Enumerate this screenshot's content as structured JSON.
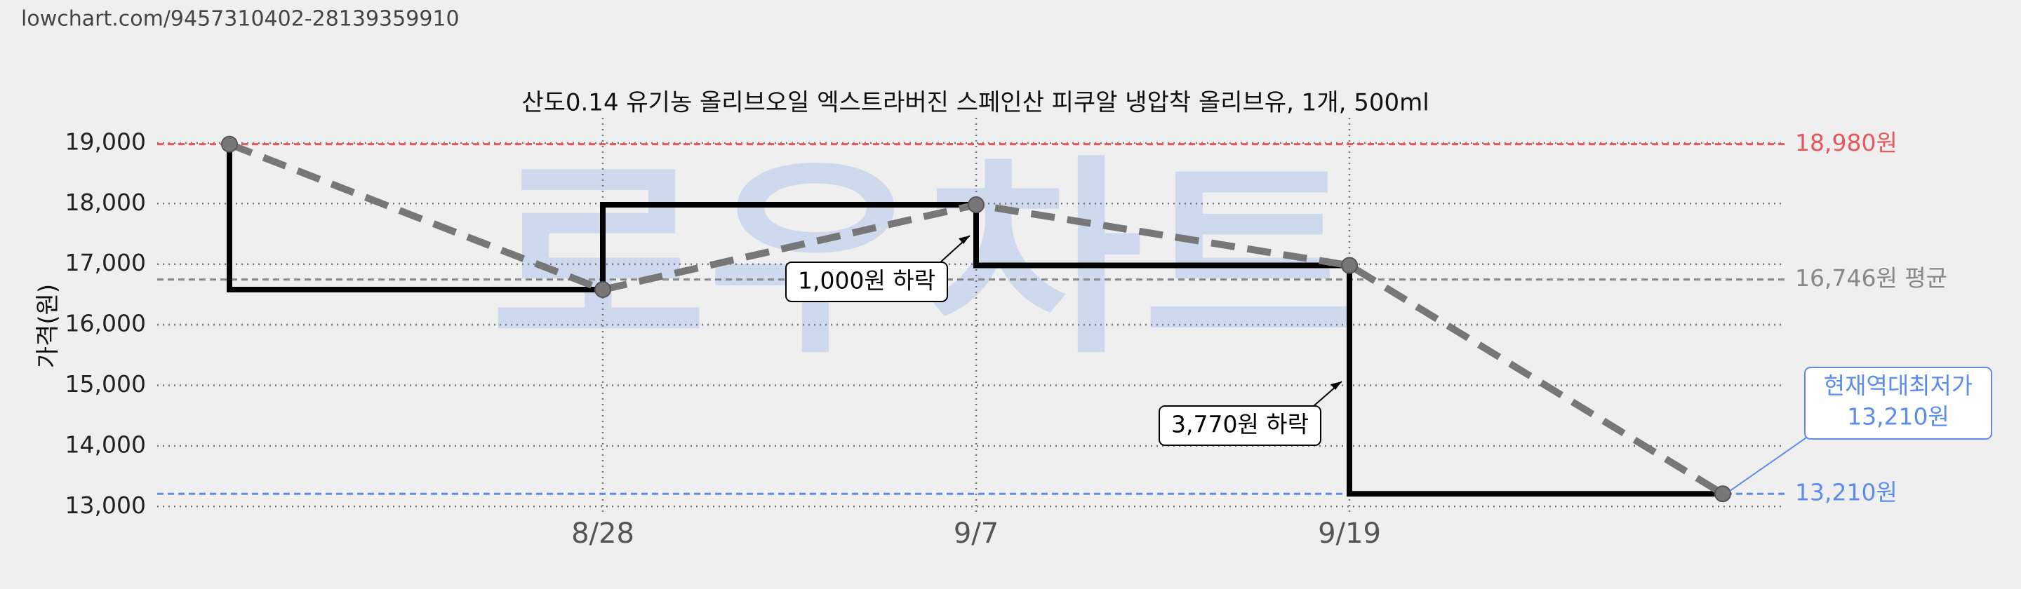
{
  "url": "lowchart.com/9457310402-28139359910",
  "chart_data": {
    "type": "line",
    "title": "산도0.14 유기농 올리브오일 엑스트라버진 스페인산 피쿠알 냉압착 올리브유, 1개, 500ml",
    "ylabel": "가격(원)",
    "watermark": "로우차트",
    "categories": [
      null,
      "8/28",
      "9/7",
      "9/19",
      null
    ],
    "values": [
      18980,
      16580,
      17980,
      16980,
      13210
    ],
    "line_color": "#777777",
    "step_color": "#000000",
    "ylim": [
      12900,
      19300
    ],
    "yticks": [
      {
        "value": 13000,
        "label": "13,000"
      },
      {
        "value": 14000,
        "label": "14,000"
      },
      {
        "value": 15000,
        "label": "15,000"
      },
      {
        "value": 16000,
        "label": "16,000"
      },
      {
        "value": 17000,
        "label": "17,000"
      },
      {
        "value": 18000,
        "label": "18,000"
      },
      {
        "value": 19000,
        "label": "19,000"
      }
    ],
    "grid": true,
    "reference_lines": [
      {
        "value": 18980,
        "label": "18,980원",
        "color": "#e8585a",
        "style": "dashed"
      },
      {
        "value": 16746,
        "label": "16,746원 평균",
        "color": "#888888",
        "style": "dashed"
      },
      {
        "value": 13210,
        "label": "13,210원",
        "color": "#5b8def",
        "style": "dashed"
      }
    ],
    "callouts": [
      "1,000원 하락",
      "3,770원 하락"
    ],
    "lowest_note": [
      "현재역대최저가",
      "13,210원"
    ],
    "lowest_color": "#5b8def"
  }
}
